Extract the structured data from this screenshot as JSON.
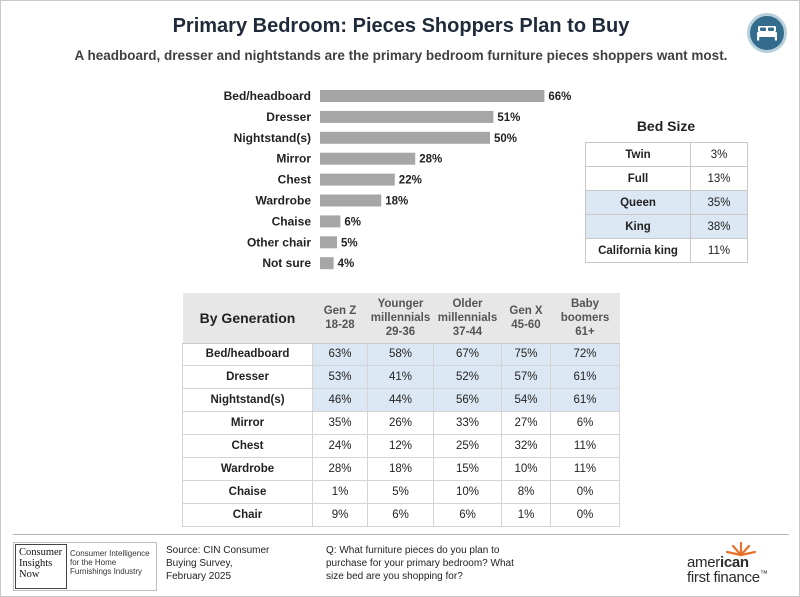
{
  "header": {
    "title": "Primary Bedroom: Pieces Shoppers Plan to Buy",
    "subtitle": "A headboard, dresser and nightstands are the primary bedroom furniture pieces shoppers want most."
  },
  "colors": {
    "bar": "#a6a6a6",
    "highlight": "#dbe8f3",
    "badge": "#336c8c",
    "accent_orange": "#e8722b"
  },
  "icons": {
    "badge": "bed-icon"
  },
  "chart_data": [
    {
      "type": "bar",
      "orientation": "horizontal",
      "categories": [
        "Bed/headboard",
        "Dresser",
        "Nightstand(s)",
        "Mirror",
        "Chest",
        "Wardrobe",
        "Chaise",
        "Other chair",
        "Not sure"
      ],
      "values": [
        66,
        51,
        50,
        28,
        22,
        18,
        6,
        5,
        4
      ],
      "value_labels": [
        "66%",
        "51%",
        "50%",
        "28%",
        "22%",
        "18%",
        "6%",
        "5%",
        "4%"
      ],
      "unit": "%",
      "xlim": [
        0,
        100
      ],
      "grid": false
    },
    {
      "type": "table",
      "title": "Bed Size",
      "rows": [
        {
          "label": "Twin",
          "value": "3%",
          "highlight": false
        },
        {
          "label": "Full",
          "value": "13%",
          "highlight": false
        },
        {
          "label": "Queen",
          "value": "35%",
          "highlight": true
        },
        {
          "label": "King",
          "value": "38%",
          "highlight": true
        },
        {
          "label": "California king",
          "value": "11%",
          "highlight": false
        }
      ]
    },
    {
      "type": "table",
      "title": "By Generation",
      "columns": [
        {
          "line1": "Gen Z",
          "line2": "18-28"
        },
        {
          "line1": "Younger millennials",
          "line2": "29-36"
        },
        {
          "line1": "Older millennials",
          "line2": "37-44"
        },
        {
          "line1": "Gen X",
          "line2": "45-60"
        },
        {
          "line1": "Baby boomers",
          "line2": "61+"
        }
      ],
      "rows": [
        {
          "label": "Bed/headboard",
          "values": [
            "63%",
            "58%",
            "67%",
            "75%",
            "72%"
          ],
          "highlight": true
        },
        {
          "label": "Dresser",
          "values": [
            "53%",
            "41%",
            "52%",
            "57%",
            "61%"
          ],
          "highlight": true
        },
        {
          "label": "Nightstand(s)",
          "values": [
            "46%",
            "44%",
            "56%",
            "54%",
            "61%"
          ],
          "highlight": true
        },
        {
          "label": "Mirror",
          "values": [
            "35%",
            "26%",
            "33%",
            "27%",
            "6%"
          ],
          "highlight": false
        },
        {
          "label": "Chest",
          "values": [
            "24%",
            "12%",
            "25%",
            "32%",
            "11%"
          ],
          "highlight": false
        },
        {
          "label": "Wardrobe",
          "values": [
            "28%",
            "18%",
            "15%",
            "10%",
            "11%"
          ],
          "highlight": false
        },
        {
          "label": "Chaise",
          "values": [
            "1%",
            "5%",
            "10%",
            "8%",
            "0%"
          ],
          "highlight": false
        },
        {
          "label": "Chair",
          "values": [
            "9%",
            "6%",
            "6%",
            "1%",
            "0%"
          ],
          "highlight": false
        }
      ]
    }
  ],
  "footer": {
    "cin_logo_lines": [
      "Consumer",
      "Insights",
      "Now"
    ],
    "cin_tagline": "Consumer Intelligence for the Home Furnishings Industry",
    "source_lines": [
      "Source: CIN Consumer",
      "Buying Survey,",
      "February 2025"
    ],
    "question_lines": [
      "Q: What furniture pieces do you plan to",
      "purchase for your primary bedroom? What",
      "size bed are you shopping for?"
    ],
    "aff_logo_line1_a": "amer",
    "aff_logo_line1_b": "ican",
    "aff_logo_line2": "first finance",
    "aff_logo_tm": "™"
  }
}
